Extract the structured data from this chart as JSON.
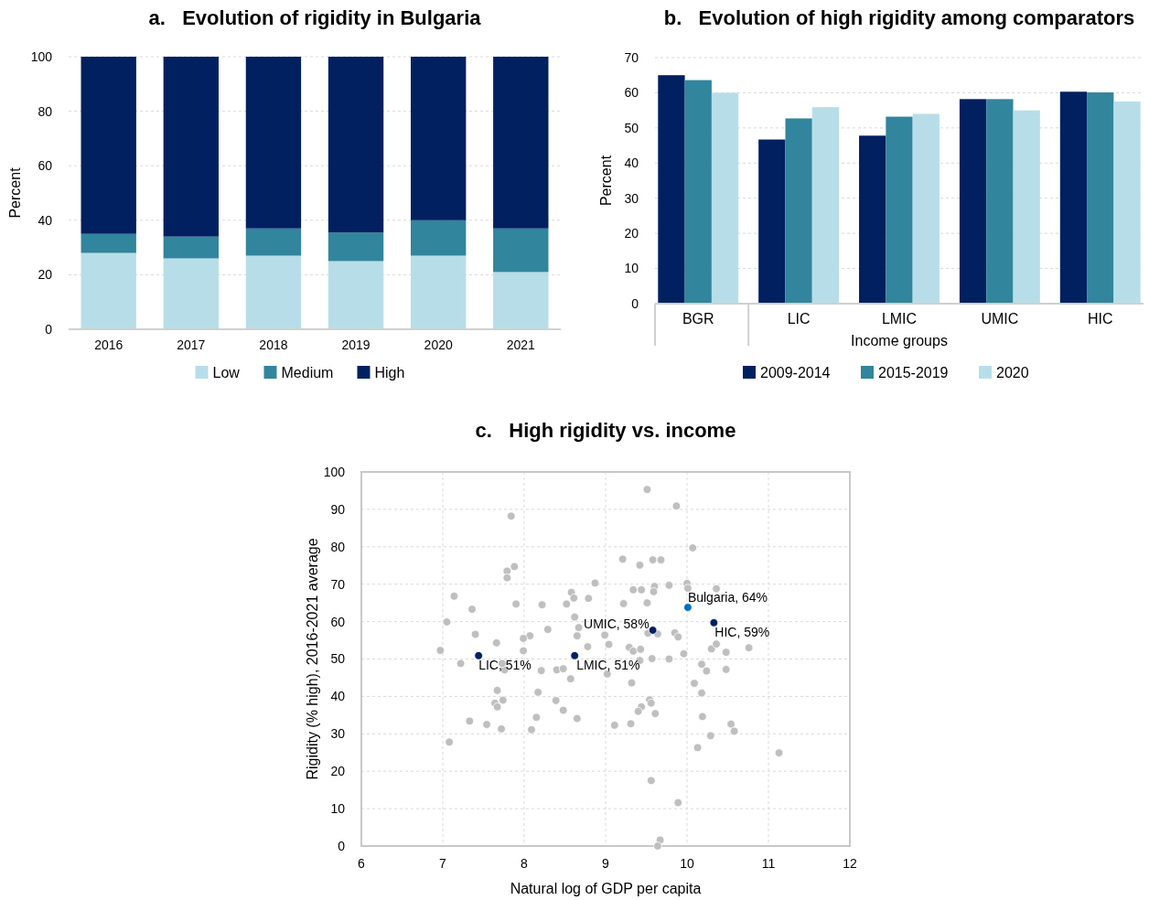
{
  "chart_data": [
    {
      "type": "bar",
      "title": "a.   Evolution of rigidity in Bulgaria",
      "ylabel": "Percent",
      "categories": [
        "2016",
        "2017",
        "2018",
        "2019",
        "2020",
        "2021"
      ],
      "stacked": true,
      "series": [
        {
          "name": "Low",
          "color": "#b7dee8",
          "values": [
            28,
            26,
            27,
            25,
            27,
            21
          ]
        },
        {
          "name": "Medium",
          "color": "#31859c",
          "values": [
            7,
            8,
            10,
            10.5,
            13,
            16
          ]
        },
        {
          "name": "High",
          "color": "#002060",
          "values": [
            65,
            66,
            63,
            64.5,
            60,
            63
          ]
        }
      ],
      "ylim": [
        0,
        100
      ],
      "yticks": [
        0,
        20,
        40,
        60,
        80,
        100
      ],
      "grid": "y",
      "legend": "bottom"
    },
    {
      "type": "bar",
      "title": "b.   Evolution of high rigidity among comparators",
      "ylabel": "Percent",
      "xlabel": "Income groups",
      "categories": [
        "BGR",
        "LIC",
        "LMIC",
        "UMIC",
        "HIC"
      ],
      "series": [
        {
          "name": "2009-2014",
          "color": "#002060",
          "values": [
            65,
            46.7,
            47.8,
            58.2,
            60.3
          ]
        },
        {
          "name": "2015-2019",
          "color": "#31859c",
          "values": [
            63.6,
            52.7,
            53.2,
            58.2,
            60.1
          ]
        },
        {
          "name": "2020",
          "color": "#b7dee8",
          "values": [
            60,
            55.9,
            54,
            55,
            57.5
          ]
        }
      ],
      "ylim": [
        0,
        70
      ],
      "yticks": [
        0,
        10,
        20,
        30,
        40,
        50,
        60,
        70
      ],
      "grid": "y",
      "legend": "bottom"
    },
    {
      "type": "scatter",
      "title": "c.   High rigidity vs. income",
      "xlabel": "Natural log of GDP per capita",
      "ylabel": "Rigidity (% high), 2016-2021 average",
      "marker": "circle",
      "series": [
        {
          "color": "#bfbfbf",
          "x": [
            7.84,
            7.88,
            7.79,
            7.79,
            8.87,
            7.14,
            8.58,
            8.61,
            8.79,
            7.36,
            7.9,
            8.22,
            8.52,
            7.05,
            8.62,
            8.29,
            8.67,
            7.4,
            8.07,
            7.99,
            8.65,
            8.99,
            7.66,
            8.78,
            9.04,
            6.97,
            7.99,
            7.22,
            7.76,
            7.73,
            8.21,
            8.4,
            8.48,
            8.57,
            9.02,
            7.67,
            8.17,
            7.64,
            7.74,
            7.67,
            8.39,
            8.48,
            7.33,
            7.54,
            7.72,
            8.15,
            8.09,
            8.65,
            7.08,
            9.51,
            9.87,
            10.07,
            9.21,
            9.42,
            9.58,
            9.68,
            9.34,
            9.44,
            9.6,
            9.59,
            9.78,
            10.0,
            10.01,
            10.36,
            9.22,
            9.51,
            9.52,
            9.64,
            9.85,
            9.89,
            10.3,
            10.36,
            10.48,
            10.76,
            9.29,
            9.34,
            9.43,
            9.42,
            9.57,
            9.78,
            9.96,
            10.18,
            10.24,
            10.48,
            9.32,
            10.09,
            10.18,
            9.54,
            9.56,
            9.44,
            9.4,
            9.61,
            9.11,
            9.31,
            10.19,
            10.54,
            10.58,
            10.29,
            10.13,
            11.13,
            9.56,
            9.89,
            9.67,
            9.64
          ],
          "values": [
            88.2,
            74.7,
            73.5,
            71.7,
            70.3,
            66.8,
            67.8,
            66.3,
            66.2,
            63.3,
            64.7,
            64.5,
            64.7,
            59.9,
            61.2,
            57.9,
            58.4,
            56.6,
            56.2,
            55.5,
            56.2,
            56.4,
            54.3,
            53.3,
            53.9,
            52.3,
            52.2,
            48.8,
            47.1,
            48.8,
            46.9,
            47.1,
            47.4,
            44.7,
            46,
            41.6,
            41.1,
            38.2,
            39,
            37.2,
            38.9,
            36.3,
            33.4,
            32.5,
            31.3,
            34.4,
            31.1,
            34.1,
            27.8,
            95.3,
            90.9,
            79.7,
            76.7,
            75.1,
            76.5,
            76.5,
            68.5,
            68.5,
            69.4,
            68,
            69.7,
            70.2,
            68.9,
            68.8,
            64.8,
            65,
            56.9,
            56.7,
            57,
            55.9,
            52.7,
            54,
            51.8,
            53,
            53.1,
            52.1,
            52.6,
            49.6,
            50.1,
            50,
            51.4,
            48.6,
            46.8,
            47.2,
            43.6,
            43.5,
            40.9,
            39.1,
            38.2,
            37.2,
            36,
            35.4,
            32.3,
            32.7,
            34.6,
            32.6,
            30.7,
            29.5,
            26.3,
            24.9,
            17.5,
            11.6,
            1.6,
            0
          ]
        },
        {
          "color": "#002060",
          "x": [
            7.44,
            8.62,
            9.58,
            10.33
          ],
          "values": [
            50.9,
            50.9,
            57.7,
            59.7
          ]
        },
        {
          "color": "#0070c0",
          "x": [
            10.01
          ],
          "values": [
            63.8
          ]
        }
      ],
      "annotations": [
        {
          "text": "Bulgaria, 64%",
          "x": 10.01,
          "y": 63.8
        },
        {
          "text": "UMIC, 58%",
          "x": 9.58,
          "y": 57.7
        },
        {
          "text": "HIC, 59%",
          "x": 10.33,
          "y": 59.7
        },
        {
          "text": "LIC, 51%",
          "x": 7.44,
          "y": 50.9
        },
        {
          "text": "LMIC, 51%",
          "x": 8.62,
          "y": 50.9
        }
      ],
      "xlim": [
        6,
        12
      ],
      "xticks": [
        6,
        7,
        8,
        9,
        10,
        11,
        12
      ],
      "ylim": [
        0,
        100
      ],
      "yticks": [
        0,
        10,
        20,
        30,
        40,
        50,
        60,
        70,
        80,
        90,
        100
      ],
      "grid": true,
      "legend": false
    }
  ]
}
